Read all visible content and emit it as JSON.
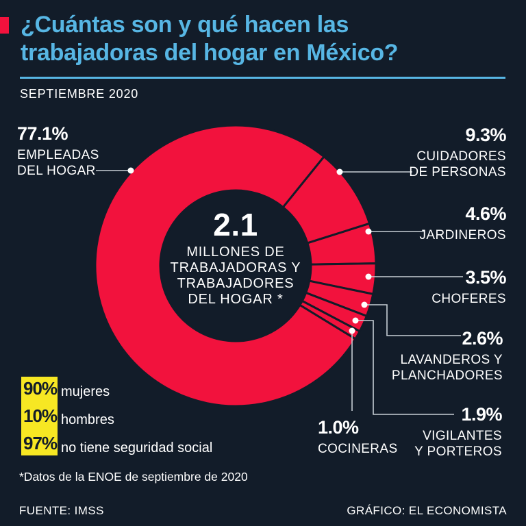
{
  "header": {
    "title_line1": "¿Cuántas son y qué hacen las",
    "title_line2": "trabajadoras del hogar en México?",
    "subtitle": "SEPTIEMBRE 2020"
  },
  "chart_data": {
    "type": "pie",
    "variant": "donut",
    "title": "¿Cuántas son y qué hacen las trabajadoras del hogar en México?",
    "unit": "%",
    "start_angle_clockwise_from_top_deg": 39,
    "segment_color": "#f2123d",
    "segments": [
      {
        "label": "CUIDADORES DE PERSONAS",
        "value": 9.3
      },
      {
        "label": "JARDINEROS",
        "value": 4.6
      },
      {
        "label": "CHOFERES",
        "value": 3.5
      },
      {
        "label": "LAVANDEROS Y PLANCHADORES",
        "value": 2.6
      },
      {
        "label": "VIGILANTES Y PORTEROS",
        "value": 1.9
      },
      {
        "label": "COCINERAS",
        "value": 1.0
      },
      {
        "label": "EMPLEADAS DEL HOGAR",
        "value": 77.1
      }
    ],
    "center": {
      "value": "2.1",
      "label_lines": [
        "MILLONES DE",
        "TRABAJADORAS Y",
        "TRABAJADORES",
        "DEL HOGAR *"
      ]
    }
  },
  "callouts": [
    {
      "value": "77.1%",
      "lines": [
        "EMPLEADAS",
        "DEL HOGAR"
      ]
    },
    {
      "value": "9.3%",
      "lines": [
        "CUIDADORES",
        "DE PERSONAS"
      ]
    },
    {
      "value": "4.6%",
      "lines": [
        "JARDINEROS"
      ]
    },
    {
      "value": "3.5%",
      "lines": [
        "CHOFERES"
      ]
    },
    {
      "value": "2.6%",
      "lines": [
        "LAVANDEROS Y",
        "PLANCHADORES"
      ]
    },
    {
      "value": "1.9%",
      "lines": [
        "VIGILANTES",
        "Y PORTEROS"
      ]
    },
    {
      "value": "1.0%",
      "lines": [
        "COCINERAS"
      ]
    }
  ],
  "stats": [
    {
      "value": "90%",
      "label": "mujeres"
    },
    {
      "value": "10%",
      "label": "hombres"
    },
    {
      "value": "97%",
      "label": "no tiene seguridad social"
    }
  ],
  "footnote": "*Datos de la ENOE de septiembre de 2020",
  "footer": {
    "source": "FUENTE: IMSS",
    "credit": "GRÁFICO: EL ECONOMISTA"
  },
  "colors": {
    "bg": "#121c29",
    "red": "#f2123d",
    "cyan": "#57b6e4",
    "yellow": "#f7e723",
    "white": "#ffffff",
    "line": "#c7cfd6"
  }
}
